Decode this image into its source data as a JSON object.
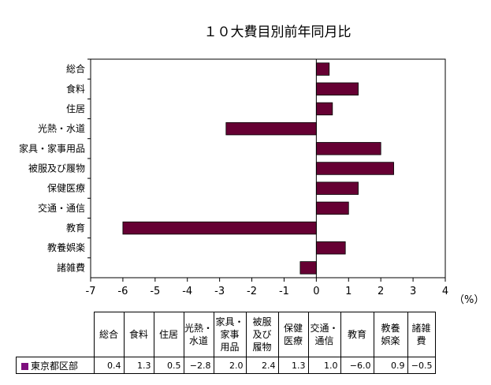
{
  "chart_data": {
    "type": "bar",
    "orientation": "horizontal",
    "title": "１０大費目別前年同月比",
    "unit_label": "（%）",
    "categories": [
      "総合",
      "食料",
      "住居",
      "光熱・水道",
      "家具・家事用品",
      "被服及び履物",
      "保健医療",
      "交通・通信",
      "教育",
      "教養娯楽",
      "諸雑費"
    ],
    "series": [
      {
        "name": "東京都区部",
        "values": [
          0.4,
          1.3,
          0.5,
          -2.8,
          2.0,
          2.4,
          1.3,
          1.0,
          -6.0,
          0.9,
          -0.5
        ]
      }
    ],
    "xlim": [
      -7,
      4
    ],
    "x_ticks": [
      "-7",
      "-6",
      "-5",
      "-4",
      "-3",
      "-2",
      "-1",
      "0",
      "1",
      "2",
      "3",
      "4"
    ],
    "bar_color": "#660033",
    "grid": false
  },
  "table": {
    "headers": [
      [
        "総合"
      ],
      [
        "食料"
      ],
      [
        "住居"
      ],
      [
        "光熱・",
        "水道"
      ],
      [
        "家具・",
        "家事",
        "用品"
      ],
      [
        "被服",
        "及び",
        "履物"
      ],
      [
        "保健",
        "医療"
      ],
      [
        "交通・",
        "通信"
      ],
      [
        "教育"
      ],
      [
        "教養",
        "娯楽"
      ],
      [
        "諸雑",
        "費"
      ]
    ],
    "row_label": "東京都区部",
    "row_values": [
      "0.4",
      "1.3",
      "0.5",
      "−2.8",
      "2.0",
      "2.4",
      "1.3",
      "1.0",
      "−6.0",
      "0.9",
      "−0.5"
    ],
    "legend_color": "#7d0e7d"
  }
}
